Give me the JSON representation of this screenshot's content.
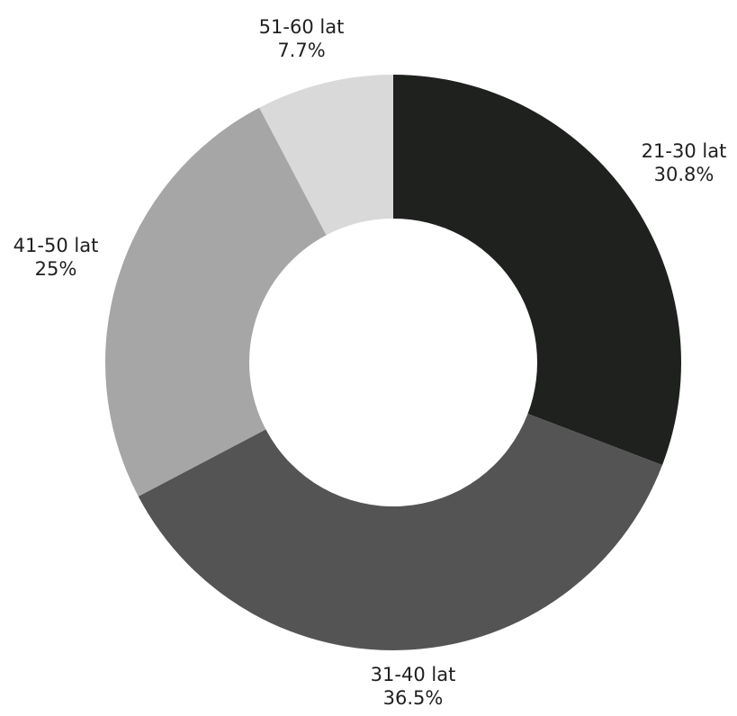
{
  "chart_data": {
    "type": "pie",
    "subtype": "donut",
    "title": "",
    "slices": [
      {
        "label": "21-30 lat",
        "value": 30.8,
        "value_label": "30.8%",
        "color": "#1f211f"
      },
      {
        "label": "31-40 lat",
        "value": 36.5,
        "value_label": "36.5%",
        "color": "#545454"
      },
      {
        "label": "41-50 lat",
        "value": 25,
        "value_label": "25%",
        "color": "#a6a6a6"
      },
      {
        "label": "51-60 lat",
        "value": 7.7,
        "value_label": "7.7%",
        "color": "#d9d9d9"
      }
    ],
    "start_angle_deg": 0,
    "direction": "clockwise",
    "legend": "none"
  }
}
